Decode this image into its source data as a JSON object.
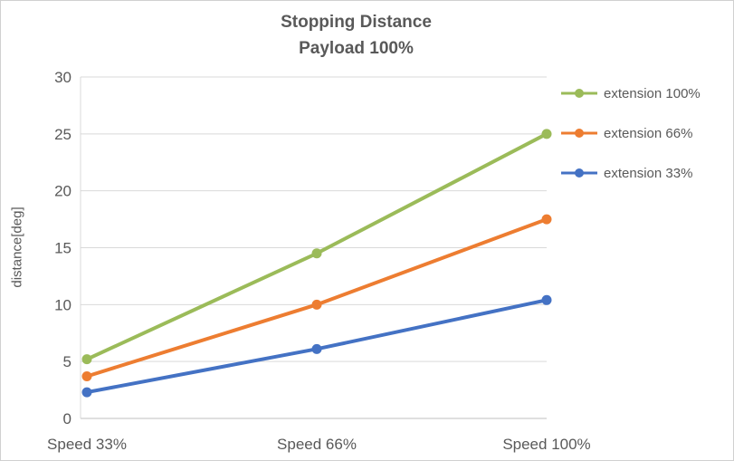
{
  "chart_data": {
    "type": "line",
    "title": "Stopping Distance",
    "subtitle": "Payload 100%",
    "ylabel": "distance[deg]",
    "xlabel": "",
    "categories": [
      "Speed 33%",
      "Speed 66%",
      "Speed 100%"
    ],
    "series": [
      {
        "name": "extension 100%",
        "color": "#9BBB59",
        "values": [
          5.2,
          14.5,
          25.0
        ]
      },
      {
        "name": "extension 66%",
        "color": "#ED7D31",
        "values": [
          3.7,
          10.0,
          17.5
        ]
      },
      {
        "name": "extension 33%",
        "color": "#4472C4",
        "values": [
          2.3,
          6.1,
          10.4
        ]
      }
    ],
    "ylim": [
      0,
      30
    ],
    "yticks": [
      0,
      5,
      10,
      15,
      20,
      25,
      30
    ],
    "grid": true,
    "legend_position": "right"
  },
  "colors": {
    "text": "#595959",
    "gridline": "#D9D9D9",
    "axis_line": "#BFBFBF",
    "border": "#D0D0D0",
    "background": "#FFFFFF"
  }
}
